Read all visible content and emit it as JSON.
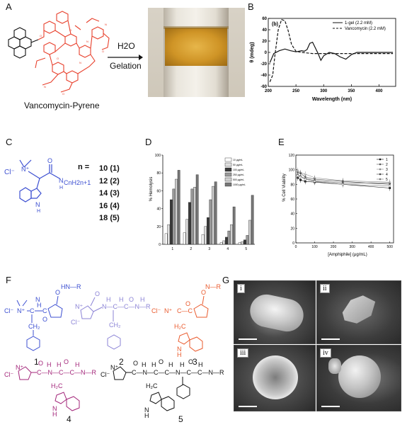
{
  "panels": {
    "A": "A",
    "B": "B",
    "C": "C",
    "D": "D",
    "E": "E",
    "F": "F",
    "G": "G"
  },
  "panel_a": {
    "reagent": "H2O",
    "process": "Gelation",
    "compound_name": "Vancomycin-Pyrene"
  },
  "panel_c": {
    "anion": "Cl⁻",
    "n_prefix": "n =",
    "chain_label": "CnH2n+1",
    "chain_rows": [
      {
        "n": "10",
        "id": "(1)"
      },
      {
        "n": "12",
        "id": "(2)"
      },
      {
        "n": "14",
        "id": "(3)"
      },
      {
        "n": "16",
        "id": "(4)"
      },
      {
        "n": "18",
        "id": "(5)"
      }
    ]
  },
  "panel_f": {
    "compound_numbers": [
      "1",
      "2",
      "3",
      "4",
      "5"
    ],
    "anion": "Cl⁻"
  },
  "panel_g": {
    "subpanels": [
      "i",
      "ii",
      "iii",
      "iv"
    ]
  },
  "colors": {
    "red": "#e8412d",
    "blue": "#3c4fd1",
    "purple": "#8b83d6",
    "orange": "#ea5b2e",
    "magenta": "#a3267a",
    "gel": "#d9a12c"
  },
  "chart_data": [
    {
      "id": "B",
      "type": "line",
      "title": "(b)",
      "xlabel": "Wavelength (nm)",
      "ylabel": "θ (mdeg)",
      "xlim": [
        200,
        430
      ],
      "ylim": [
        -60,
        60
      ],
      "xticks": [
        200,
        250,
        300,
        350,
        400
      ],
      "yticks": [
        -60,
        -40,
        -20,
        0,
        20,
        40,
        60
      ],
      "legend_position": "top-right",
      "series": [
        {
          "name": "1-gel (2.2 mM)",
          "style": "solid",
          "x": [
            203,
            210,
            220,
            230,
            240,
            250,
            260,
            265,
            270,
            275,
            280,
            285,
            290,
            295,
            300,
            305,
            310,
            320,
            330,
            340,
            350,
            360,
            380,
            400,
            425
          ],
          "y": [
            -18,
            -2,
            3,
            6,
            3,
            1,
            3,
            2,
            5,
            16,
            18,
            8,
            -2,
            -14,
            -6,
            -3,
            0,
            -2,
            -8,
            -12,
            -4,
            0,
            0,
            0,
            0
          ]
        },
        {
          "name": "Vancomycin (2.2 mM)",
          "style": "dashed",
          "x": [
            203,
            208,
            212,
            218,
            224,
            230,
            236,
            242,
            250,
            260,
            270,
            280,
            300,
            350,
            425
          ],
          "y": [
            -52,
            -40,
            -5,
            40,
            58,
            56,
            38,
            14,
            2,
            0,
            -1,
            -2,
            -2,
            -2,
            -2
          ]
        }
      ]
    },
    {
      "id": "D",
      "type": "bar",
      "ylabel": "% Hemolysis",
      "ylim": [
        0,
        100
      ],
      "yticks": [
        0,
        20,
        40,
        60,
        80,
        100
      ],
      "categories": [
        "1",
        "2",
        "3",
        "4",
        "5"
      ],
      "legend_position": "top-right",
      "series": [
        {
          "name": "10 μg/mL",
          "values": [
            12,
            13,
            11,
            2,
            2
          ]
        },
        {
          "name": "50 μg/mL",
          "values": [
            22,
            28,
            20,
            4,
            3
          ]
        },
        {
          "name": "100 μg/mL",
          "values": [
            50,
            47,
            30,
            8,
            5
          ]
        },
        {
          "name": "250 μg/mL",
          "values": [
            62,
            62,
            50,
            15,
            10
          ]
        },
        {
          "name": "500 μg/mL",
          "values": [
            73,
            64,
            65,
            22,
            27
          ]
        },
        {
          "name": "1000 μg/mL",
          "values": [
            83,
            78,
            70,
            42,
            55
          ]
        }
      ]
    },
    {
      "id": "E",
      "type": "line",
      "ylabel": "% Cell Viability",
      "xlabel": "[Amphiphile] (μg/mL)",
      "xlim": [
        0,
        520
      ],
      "ylim": [
        0,
        120
      ],
      "xticks": [
        0,
        100,
        200,
        300,
        400,
        500
      ],
      "yticks": [
        0,
        20,
        40,
        60,
        80,
        100,
        120
      ],
      "legend_position": "top-right",
      "series": [
        {
          "name": "1",
          "x": [
            10,
            25,
            50,
            100,
            250,
            500
          ],
          "y": [
            89,
            86,
            84,
            83,
            80,
            75
          ]
        },
        {
          "name": "2",
          "x": [
            10,
            25,
            50,
            100,
            250,
            500
          ],
          "y": [
            93,
            91,
            88,
            85,
            82,
            82
          ]
        },
        {
          "name": "3",
          "x": [
            10,
            25,
            50,
            100,
            250,
            500
          ],
          "y": [
            99,
            96,
            94,
            89,
            85,
            83
          ]
        },
        {
          "name": "4",
          "x": [
            10,
            25,
            50,
            100,
            250,
            500
          ],
          "y": [
            96,
            95,
            90,
            87,
            84,
            80
          ]
        },
        {
          "name": "5",
          "x": [
            10,
            25,
            50,
            100,
            250,
            500
          ],
          "y": [
            92,
            90,
            87,
            84,
            80,
            78
          ]
        }
      ]
    }
  ]
}
